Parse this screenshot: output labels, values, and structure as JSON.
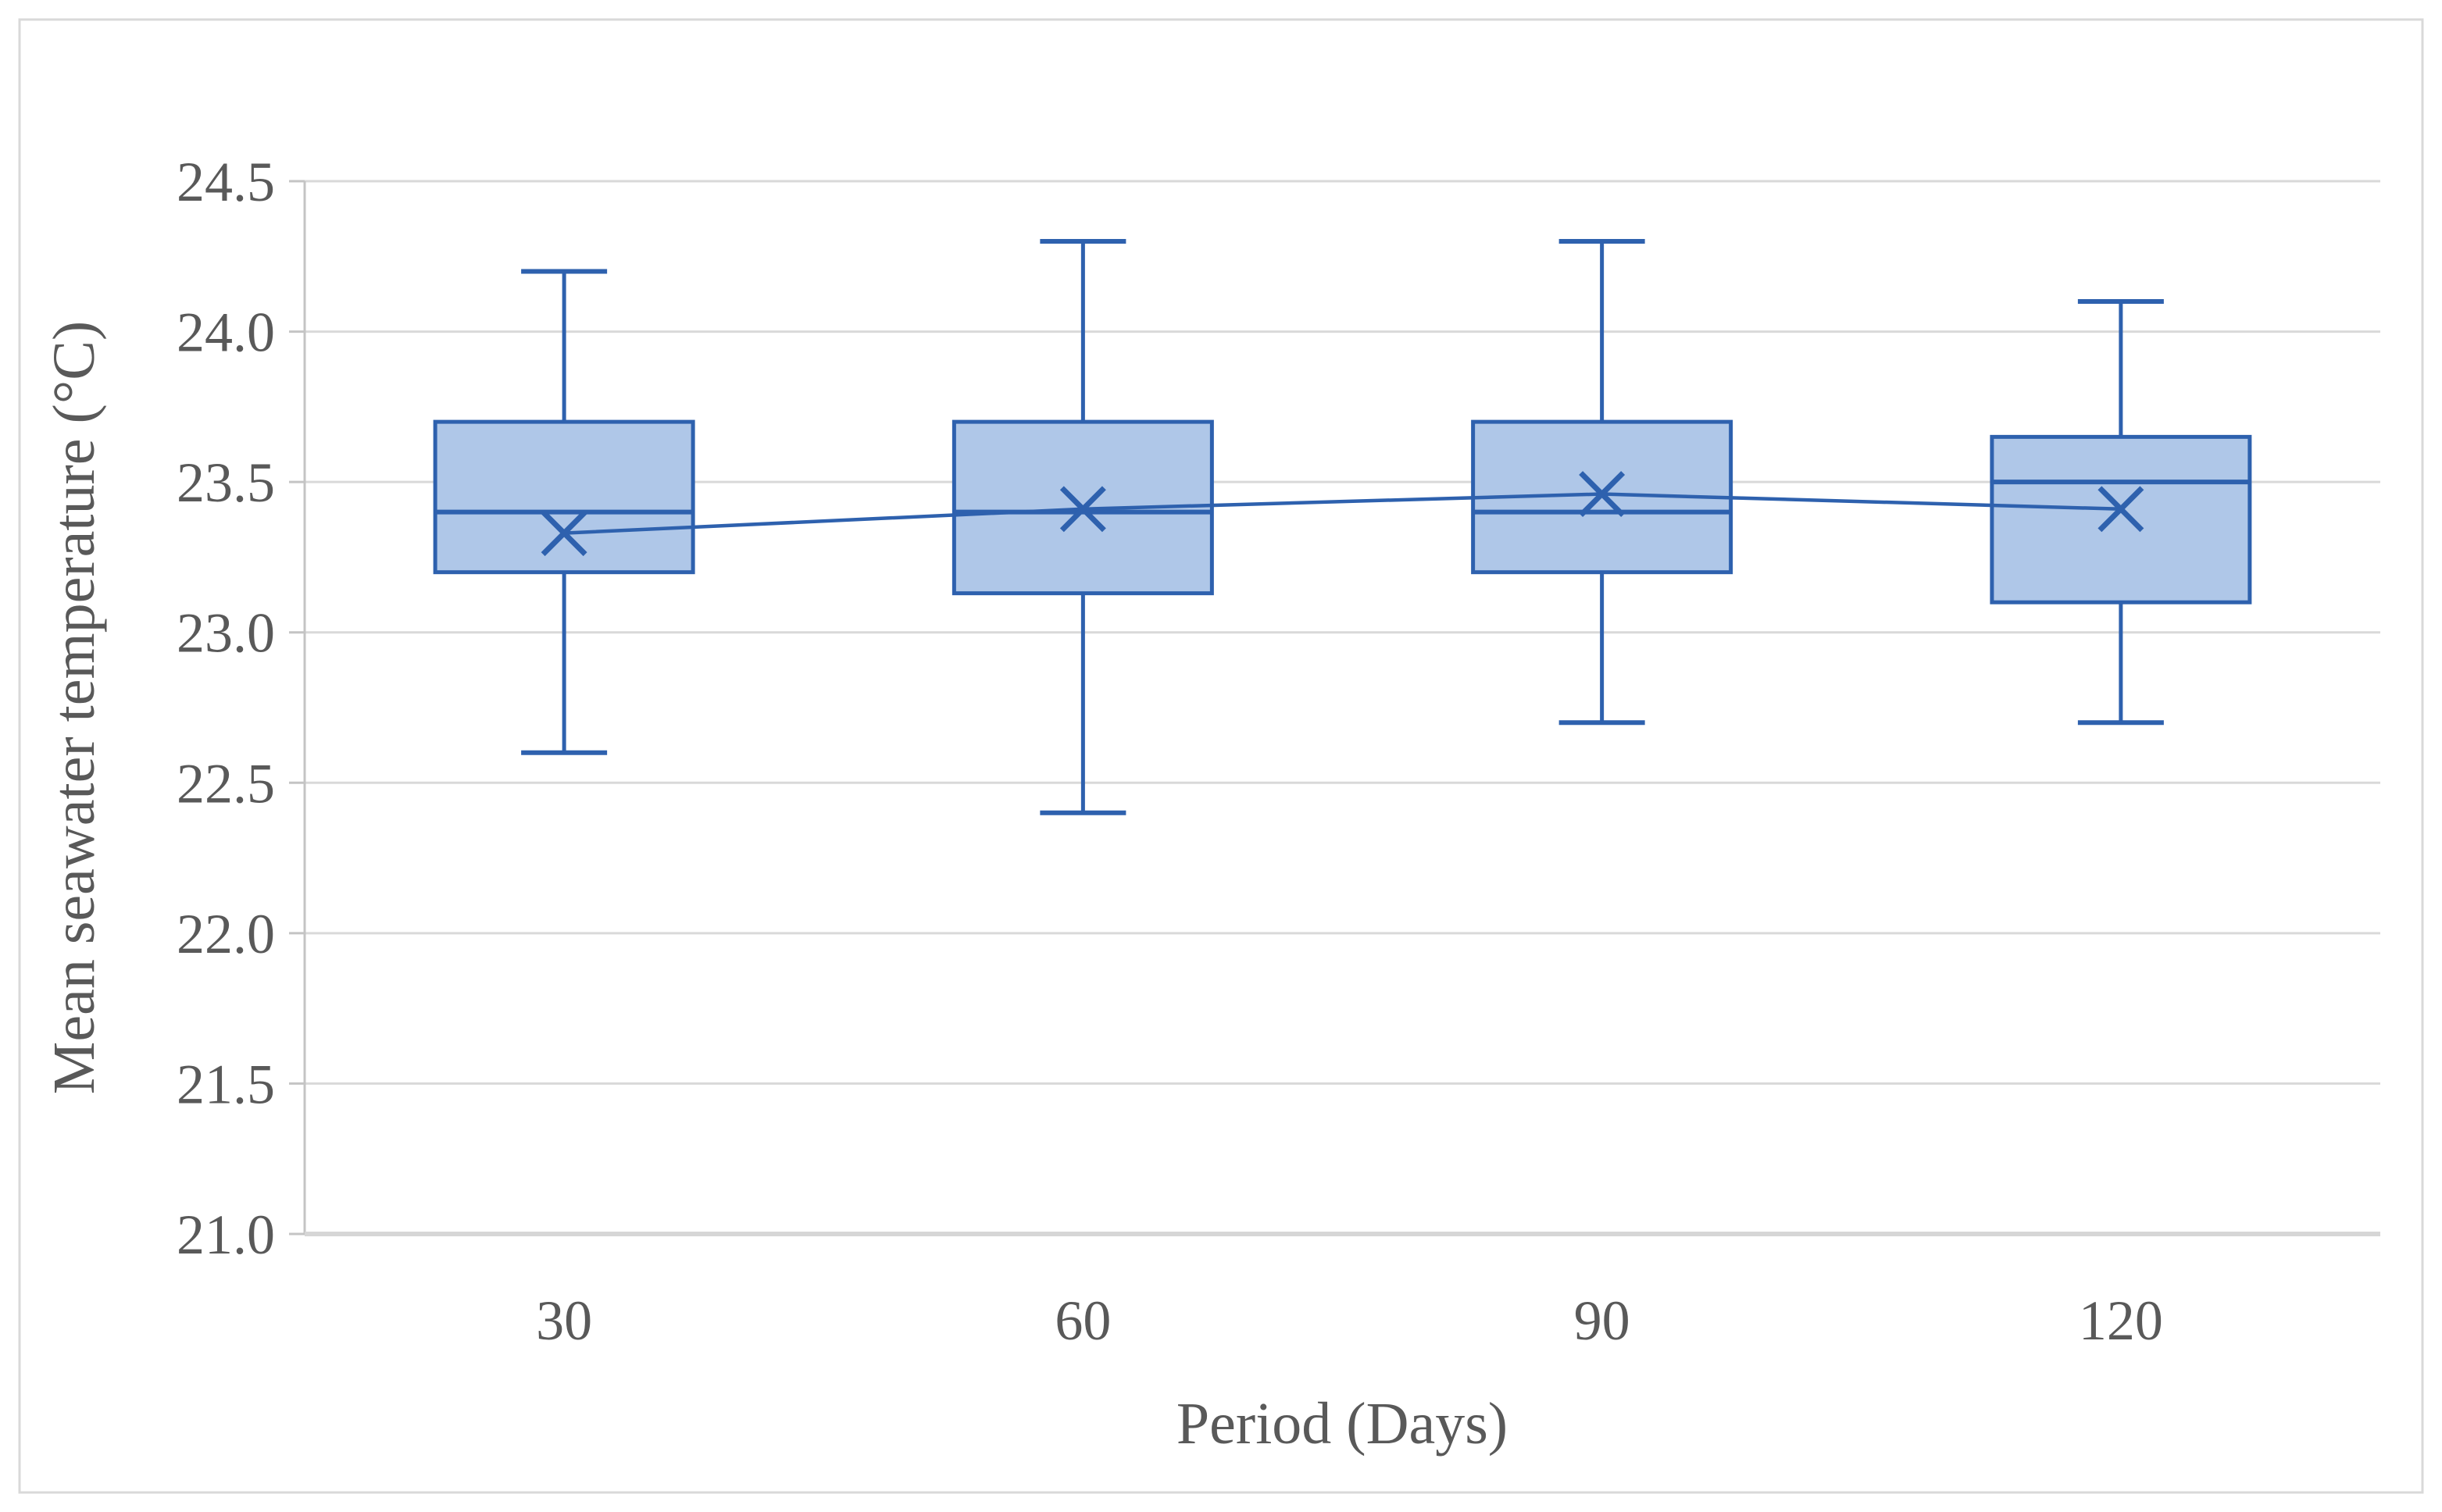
{
  "figure": {
    "background": "#FFFFFF",
    "border_color": "#D9D9D9"
  },
  "chart_data": {
    "type": "box",
    "title": "",
    "xlabel": "Period (Days)",
    "ylabel": "Mean seawater temperature (°C)",
    "categories": [
      "30",
      "60",
      "90",
      "120"
    ],
    "y_axis": {
      "min": 21.0,
      "max": 24.5,
      "step": 0.5,
      "tick_labels": [
        "21.0",
        "21.5",
        "22.0",
        "22.5",
        "23.0",
        "23.5",
        "24.0",
        "24.5"
      ]
    },
    "grid": "horizontal",
    "legend": "none",
    "mean_marker": "x",
    "mean_connector_line": true,
    "series": [
      {
        "category": "30",
        "min": 22.6,
        "q1": 23.2,
        "median": 23.4,
        "q3": 23.7,
        "max": 24.2,
        "mean": 23.33
      },
      {
        "category": "60",
        "min": 22.4,
        "q1": 23.13,
        "median": 23.4,
        "q3": 23.7,
        "max": 24.3,
        "mean": 23.41
      },
      {
        "category": "90",
        "min": 22.7,
        "q1": 23.2,
        "median": 23.4,
        "q3": 23.7,
        "max": 24.3,
        "mean": 23.46
      },
      {
        "category": "120",
        "min": 22.7,
        "q1": 23.1,
        "median": 23.5,
        "q3": 23.65,
        "max": 24.1,
        "mean": 23.41
      }
    ],
    "colors": {
      "box_fill": "#AFC7E8",
      "box_stroke": "#2E61AE",
      "gridline": "#D9D9D9",
      "axis_line": "#C4C4C4",
      "tick_text": "#595959"
    }
  }
}
